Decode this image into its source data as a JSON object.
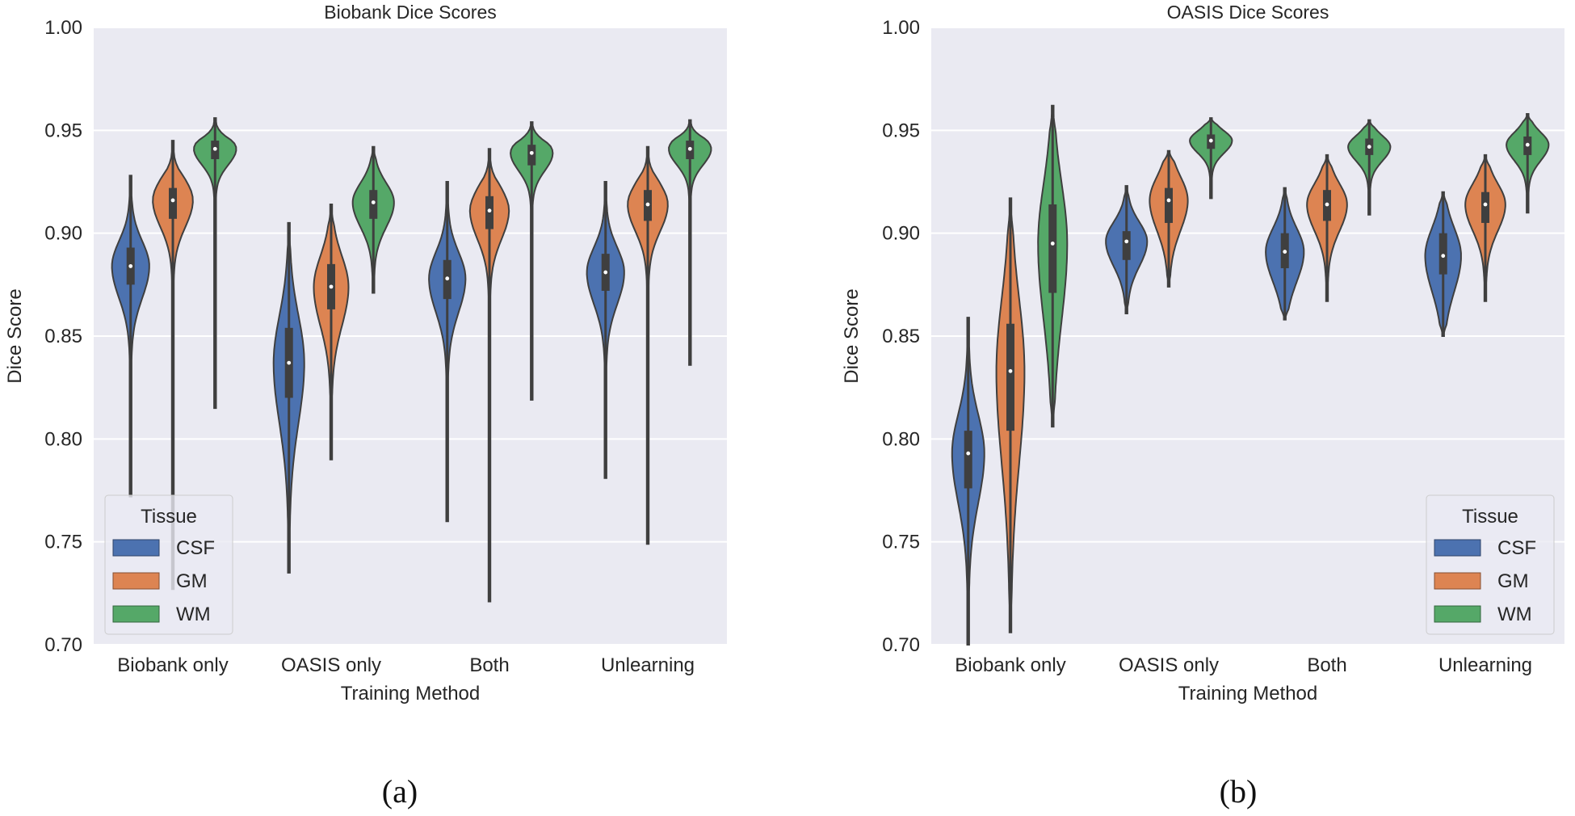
{
  "figure": {
    "captions": [
      "(a)",
      "(b)"
    ]
  },
  "chart_data": [
    {
      "type": "violin",
      "title": "Biobank Dice Scores",
      "xlabel": "Training Method",
      "ylabel": "Dice Score",
      "ylim": [
        0.7,
        1.0
      ],
      "yticks": [
        "0.70",
        "0.75",
        "0.80",
        "0.85",
        "0.90",
        "0.95",
        "1.00"
      ],
      "ytick_values": [
        0.7,
        0.75,
        0.8,
        0.85,
        0.9,
        0.95,
        1.0
      ],
      "grid": true,
      "categories": [
        "Biobank only",
        "OASIS only",
        "Both",
        "Unlearning"
      ],
      "legend": {
        "title": "Tissue",
        "position": "lower-left",
        "entries": [
          "CSF",
          "GM",
          "WM"
        ]
      },
      "series": [
        {
          "name": "CSF",
          "color": "#4c72b0",
          "stats": [
            {
              "min": 0.772,
              "q1": 0.875,
              "median": 0.884,
              "q3": 0.893,
              "max": 0.928
            },
            {
              "min": 0.735,
              "q1": 0.82,
              "median": 0.837,
              "q3": 0.854,
              "max": 0.905
            },
            {
              "min": 0.76,
              "q1": 0.868,
              "median": 0.878,
              "q3": 0.887,
              "max": 0.925
            },
            {
              "min": 0.781,
              "q1": 0.872,
              "median": 0.881,
              "q3": 0.89,
              "max": 0.925
            }
          ]
        },
        {
          "name": "GM",
          "color": "#dd8452",
          "stats": [
            {
              "min": 0.727,
              "q1": 0.907,
              "median": 0.916,
              "q3": 0.922,
              "max": 0.945
            },
            {
              "min": 0.79,
              "q1": 0.863,
              "median": 0.874,
              "q3": 0.885,
              "max": 0.914
            },
            {
              "min": 0.721,
              "q1": 0.902,
              "median": 0.911,
              "q3": 0.918,
              "max": 0.941
            },
            {
              "min": 0.749,
              "q1": 0.906,
              "median": 0.914,
              "q3": 0.921,
              "max": 0.942
            }
          ]
        },
        {
          "name": "WM",
          "color": "#55a868",
          "stats": [
            {
              "min": 0.815,
              "q1": 0.936,
              "median": 0.941,
              "q3": 0.945,
              "max": 0.956
            },
            {
              "min": 0.871,
              "q1": 0.907,
              "median": 0.915,
              "q3": 0.921,
              "max": 0.942
            },
            {
              "min": 0.819,
              "q1": 0.933,
              "median": 0.939,
              "q3": 0.943,
              "max": 0.954
            },
            {
              "min": 0.836,
              "q1": 0.936,
              "median": 0.941,
              "q3": 0.945,
              "max": 0.955
            }
          ]
        }
      ]
    },
    {
      "type": "violin",
      "title": "OASIS Dice Scores",
      "xlabel": "Training Method",
      "ylabel": "Dice Score",
      "ylim": [
        0.7,
        1.0
      ],
      "yticks": [
        "0.70",
        "0.75",
        "0.80",
        "0.85",
        "0.90",
        "0.95",
        "1.00"
      ],
      "ytick_values": [
        0.7,
        0.75,
        0.8,
        0.85,
        0.9,
        0.95,
        1.0
      ],
      "grid": true,
      "categories": [
        "Biobank only",
        "OASIS only",
        "Both",
        "Unlearning"
      ],
      "legend": {
        "title": "Tissue",
        "position": "lower-right",
        "entries": [
          "CSF",
          "GM",
          "WM"
        ]
      },
      "series": [
        {
          "name": "CSF",
          "color": "#4c72b0",
          "stats": [
            {
              "min": 0.7,
              "q1": 0.776,
              "median": 0.793,
              "q3": 0.804,
              "max": 0.859
            },
            {
              "min": 0.861,
              "q1": 0.887,
              "median": 0.896,
              "q3": 0.901,
              "max": 0.923
            },
            {
              "min": 0.858,
              "q1": 0.883,
              "median": 0.891,
              "q3": 0.9,
              "max": 0.922
            },
            {
              "min": 0.85,
              "q1": 0.88,
              "median": 0.889,
              "q3": 0.9,
              "max": 0.92
            }
          ]
        },
        {
          "name": "GM",
          "color": "#dd8452",
          "stats": [
            {
              "min": 0.706,
              "q1": 0.804,
              "median": 0.833,
              "q3": 0.856,
              "max": 0.917
            },
            {
              "min": 0.874,
              "q1": 0.905,
              "median": 0.916,
              "q3": 0.922,
              "max": 0.94
            },
            {
              "min": 0.867,
              "q1": 0.906,
              "median": 0.914,
              "q3": 0.921,
              "max": 0.938
            },
            {
              "min": 0.867,
              "q1": 0.905,
              "median": 0.914,
              "q3": 0.92,
              "max": 0.938
            }
          ]
        },
        {
          "name": "WM",
          "color": "#55a868",
          "stats": [
            {
              "min": 0.806,
              "q1": 0.871,
              "median": 0.895,
              "q3": 0.914,
              "max": 0.962
            },
            {
              "min": 0.917,
              "q1": 0.941,
              "median": 0.945,
              "q3": 0.948,
              "max": 0.956
            },
            {
              "min": 0.909,
              "q1": 0.938,
              "median": 0.942,
              "q3": 0.946,
              "max": 0.955
            },
            {
              "min": 0.91,
              "q1": 0.938,
              "median": 0.943,
              "q3": 0.947,
              "max": 0.958
            }
          ]
        }
      ]
    }
  ]
}
